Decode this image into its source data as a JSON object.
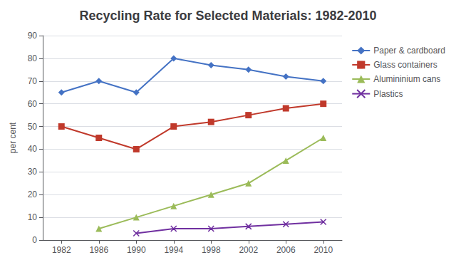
{
  "chart_data": {
    "type": "line",
    "title": "Recycling Rate for Selected Materials: 1982-2010",
    "ylabel": "per cent",
    "x": [
      1982,
      1986,
      1990,
      1994,
      1998,
      2002,
      2006,
      2010
    ],
    "xlim": [
      1980,
      2012
    ],
    "xticks": [
      1982,
      1986,
      1990,
      1994,
      1998,
      2002,
      2006,
      2010
    ],
    "ylim": [
      0,
      90
    ],
    "yticks": [
      0,
      10,
      20,
      30,
      40,
      50,
      60,
      70,
      80,
      90
    ],
    "grid": true,
    "legend": "upper right",
    "series": [
      {
        "name": "Paper & cardboard",
        "color": "#4472c4",
        "marker": "diamond",
        "values": [
          65,
          70,
          65,
          80,
          77,
          75,
          72,
          70
        ]
      },
      {
        "name": "Glass containers",
        "color": "#c0392b",
        "marker": "square",
        "values": [
          50,
          45,
          40,
          50,
          52,
          55,
          58,
          60
        ]
      },
      {
        "name": "Alumininium cans",
        "color": "#9bbb59",
        "marker": "triangle",
        "values": [
          null,
          5,
          10,
          15,
          20,
          25,
          35,
          45
        ]
      },
      {
        "name": "Plastics",
        "color": "#7030a0",
        "marker": "x",
        "values": [
          null,
          null,
          3,
          5,
          5,
          6,
          7,
          8
        ]
      }
    ]
  }
}
